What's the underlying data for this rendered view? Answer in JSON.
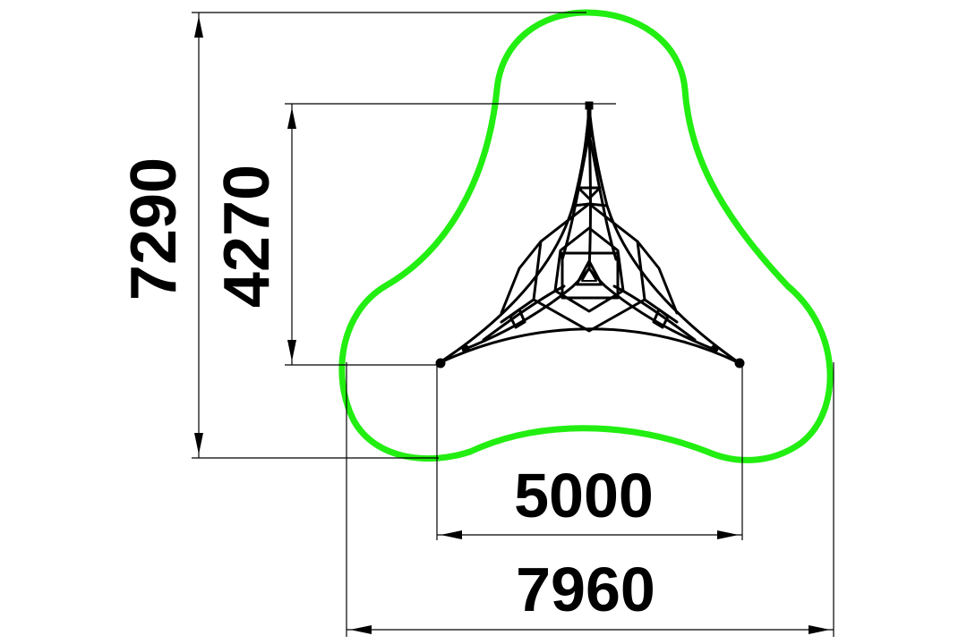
{
  "dimensions": {
    "total_height": "7290",
    "structure_height": "4270",
    "structure_width": "5000",
    "total_width": "7960"
  },
  "colors": {
    "safety_zone": "#22ee11",
    "lines": "#000000",
    "background": "#ffffff"
  }
}
